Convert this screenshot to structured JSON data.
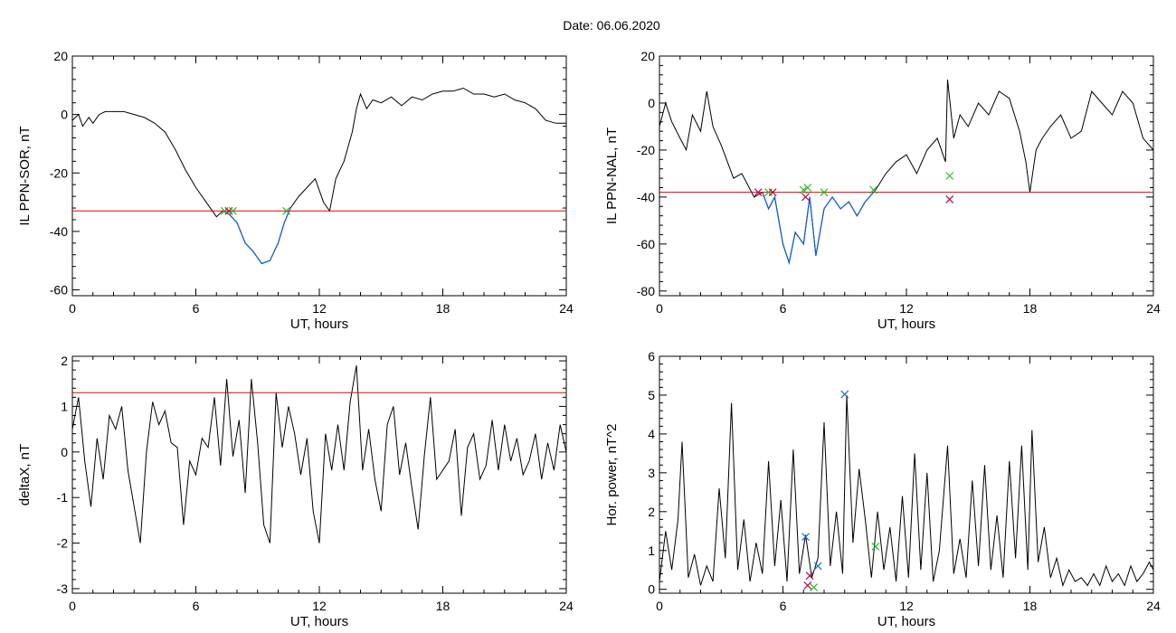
{
  "title": "Date:  06.06.2020",
  "colors": {
    "line": "#000000",
    "threshold": "#e8000b",
    "highlight": "#0a5ed6",
    "mark_green": "#20c020",
    "mark_red": "#c0004a",
    "mark_blue": "#1a6fd6"
  },
  "chart_data": [
    {
      "id": "sor",
      "type": "line",
      "xlabel": "UT, hours",
      "ylabel": "IL PPN-SOR, nT",
      "xlim": [
        0,
        24
      ],
      "ylim": [
        -62,
        20
      ],
      "xticks": [
        0,
        6,
        12,
        18,
        24
      ],
      "yticks": [
        -60,
        -40,
        -20,
        0,
        20
      ],
      "threshold": -33,
      "highlight_ranges": [
        [
          7.3,
          10.6
        ]
      ],
      "series": [
        {
          "x": [
            0,
            0.3,
            0.5,
            0.8,
            1,
            1.3,
            1.6,
            2,
            2.5,
            3,
            3.5,
            4,
            4.5,
            5,
            5.5,
            6,
            6.5,
            7,
            7.3,
            7.6,
            8,
            8.4,
            8.8,
            9.2,
            9.6,
            10,
            10.3,
            10.6,
            11,
            11.4,
            11.8,
            12.2,
            12.5,
            12.8,
            13.2,
            13.6,
            13.8,
            14,
            14.3,
            14.6,
            15,
            15.5,
            16,
            16.5,
            17,
            17.5,
            18,
            18.5,
            19,
            19.5,
            20,
            20.5,
            21,
            21.5,
            22,
            22.5,
            23,
            23.5,
            24
          ],
          "y": [
            -2,
            0,
            -4,
            -1,
            -3,
            0,
            1,
            1,
            1,
            0,
            -1,
            -3,
            -6,
            -12,
            -19,
            -25,
            -30,
            -35,
            -33,
            -34,
            -37,
            -44,
            -47,
            -51,
            -50,
            -44,
            -37,
            -32,
            -28,
            -25,
            -22,
            -30,
            -33,
            -22,
            -16,
            -6,
            2,
            7,
            2,
            5,
            4,
            6,
            3,
            6,
            5,
            7,
            8,
            8,
            9,
            7,
            7,
            6,
            7,
            5,
            4,
            2,
            -2,
            -3,
            -3
          ]
        }
      ],
      "markers": [
        {
          "x": 7.4,
          "y": -33,
          "color": "#20c020"
        },
        {
          "x": 7.6,
          "y": -33,
          "color": "#c0004a"
        },
        {
          "x": 7.8,
          "y": -33,
          "color": "#20c020"
        },
        {
          "x": 10.4,
          "y": -33,
          "color": "#20c020"
        }
      ]
    },
    {
      "id": "nal",
      "type": "line",
      "xlabel": "UT, hours",
      "ylabel": "IL PPN-NAL, nT",
      "xlim": [
        0,
        24
      ],
      "ylim": [
        -82,
        20
      ],
      "xticks": [
        0,
        6,
        12,
        18,
        24
      ],
      "yticks": [
        -80,
        -60,
        -40,
        -20,
        0,
        20
      ],
      "threshold": -38,
      "highlight_ranges": [
        [
          4.8,
          10.5
        ]
      ],
      "series": [
        {
          "x": [
            0,
            0.3,
            0.6,
            1,
            1.3,
            1.6,
            2,
            2.3,
            2.6,
            3,
            3.3,
            3.6,
            4,
            4.3,
            4.6,
            5,
            5.3,
            5.6,
            6,
            6.3,
            6.6,
            7,
            7.3,
            7.6,
            8,
            8.4,
            8.8,
            9.2,
            9.6,
            10,
            10.5,
            11,
            11.5,
            12,
            12.5,
            13,
            13.5,
            13.9,
            14,
            14.3,
            14.6,
            15,
            15.5,
            16,
            16.5,
            17,
            17.5,
            17.8,
            18,
            18.3,
            18.6,
            19,
            19.5,
            20,
            20.5,
            21,
            21.5,
            22,
            22.5,
            23,
            23.5,
            24
          ],
          "y": [
            -10,
            0,
            -8,
            -15,
            -20,
            -5,
            -12,
            5,
            -10,
            -18,
            -25,
            -32,
            -30,
            -35,
            -40,
            -38,
            -45,
            -40,
            -60,
            -68,
            -55,
            -60,
            -40,
            -65,
            -45,
            -40,
            -45,
            -42,
            -48,
            -42,
            -37,
            -30,
            -25,
            -22,
            -30,
            -20,
            -15,
            -25,
            10,
            -15,
            -5,
            -10,
            0,
            -5,
            5,
            2,
            -12,
            -25,
            -38,
            -20,
            -15,
            -10,
            -5,
            -15,
            -12,
            5,
            0,
            -5,
            5,
            0,
            -15,
            -20
          ]
        }
      ],
      "markers": [
        {
          "x": 4.8,
          "y": -38,
          "color": "#c0004a"
        },
        {
          "x": 5.3,
          "y": -38,
          "color": "#20c020"
        },
        {
          "x": 5.5,
          "y": -38,
          "color": "#c0004a"
        },
        {
          "x": 7.0,
          "y": -37,
          "color": "#20c020"
        },
        {
          "x": 7.1,
          "y": -40,
          "color": "#c0004a"
        },
        {
          "x": 7.2,
          "y": -36,
          "color": "#20c020"
        },
        {
          "x": 8.0,
          "y": -38,
          "color": "#20c020"
        },
        {
          "x": 10.4,
          "y": -37,
          "color": "#20c020"
        },
        {
          "x": 14.1,
          "y": -31,
          "color": "#20c020"
        },
        {
          "x": 14.1,
          "y": -41,
          "color": "#c0004a"
        }
      ]
    },
    {
      "id": "dx",
      "type": "line",
      "xlabel": "UT, hours",
      "ylabel": "deltaX, nT",
      "xlim": [
        0,
        24
      ],
      "ylim": [
        -3.1,
        2.1
      ],
      "xticks": [
        0,
        6,
        12,
        18,
        24
      ],
      "yticks": [
        -3,
        -2,
        -1,
        0,
        1,
        2
      ],
      "threshold": 1.3,
      "highlight_ranges": [],
      "series": [
        {
          "x": [
            0,
            0.3,
            0.6,
            0.9,
            1.2,
            1.5,
            1.8,
            2.1,
            2.4,
            2.7,
            3.0,
            3.3,
            3.6,
            3.9,
            4.2,
            4.5,
            4.8,
            5.1,
            5.4,
            5.7,
            6.0,
            6.3,
            6.6,
            6.9,
            7.2,
            7.5,
            7.8,
            8.1,
            8.4,
            8.7,
            9.0,
            9.3,
            9.6,
            9.9,
            10.2,
            10.5,
            10.8,
            11.1,
            11.4,
            11.7,
            12.0,
            12.3,
            12.6,
            12.9,
            13.2,
            13.5,
            13.8,
            14.1,
            14.4,
            14.7,
            15.0,
            15.3,
            15.6,
            15.9,
            16.2,
            16.5,
            16.8,
            17.1,
            17.4,
            17.7,
            18.0,
            18.3,
            18.6,
            18.9,
            19.2,
            19.5,
            19.8,
            20.1,
            20.4,
            20.7,
            21.0,
            21.3,
            21.6,
            21.9,
            22.2,
            22.5,
            22.8,
            23.1,
            23.4,
            23.7,
            24
          ],
          "y": [
            0.5,
            1.2,
            -0.2,
            -1.2,
            0.3,
            -0.6,
            0.8,
            0.5,
            1.0,
            -0.4,
            -1.2,
            -2.0,
            0.0,
            1.1,
            0.6,
            0.9,
            0.2,
            0.1,
            -1.6,
            -0.2,
            -0.5,
            0.3,
            0.1,
            1.2,
            -0.3,
            1.6,
            -0.1,
            0.7,
            -0.9,
            1.6,
            0.2,
            -1.6,
            -2.0,
            1.3,
            0.1,
            1.0,
            0.4,
            -0.5,
            0.3,
            -1.3,
            -2.0,
            0.4,
            -0.4,
            0.6,
            -0.4,
            1.1,
            1.9,
            -0.4,
            0.5,
            -0.6,
            -1.3,
            0.6,
            1.0,
            -0.5,
            0.2,
            -0.8,
            -1.7,
            -0.1,
            1.2,
            -0.6,
            -0.4,
            -0.2,
            0.5,
            -1.4,
            0.1,
            0.4,
            -0.6,
            -0.3,
            0.7,
            -0.4,
            0.6,
            -0.2,
            0.3,
            -0.5,
            -0.2,
            0.4,
            -0.6,
            0.2,
            -0.4,
            0.6,
            0.0
          ]
        }
      ],
      "markers": []
    },
    {
      "id": "pw",
      "type": "line",
      "xlabel": "UT, hours",
      "ylabel": "Hor. power, nT^2",
      "xlim": [
        0,
        24
      ],
      "ylim": [
        -0.1,
        6
      ],
      "xticks": [
        0,
        6,
        12,
        18,
        24
      ],
      "yticks": [
        0,
        1,
        2,
        3,
        4,
        5,
        6
      ],
      "threshold": null,
      "highlight_ranges": [],
      "series": [
        {
          "x": [
            0,
            0.3,
            0.6,
            0.9,
            1.1,
            1.4,
            1.7,
            2.0,
            2.3,
            2.6,
            2.9,
            3.2,
            3.5,
            3.8,
            4.1,
            4.4,
            4.7,
            5.0,
            5.3,
            5.6,
            5.9,
            6.2,
            6.5,
            6.8,
            7.1,
            7.4,
            7.7,
            8.0,
            8.3,
            8.6,
            8.9,
            9.1,
            9.4,
            9.7,
            10.0,
            10.3,
            10.6,
            10.9,
            11.2,
            11.5,
            11.8,
            12.1,
            12.4,
            12.7,
            13.0,
            13.3,
            13.6,
            14.0,
            14.3,
            14.6,
            14.9,
            15.2,
            15.5,
            15.8,
            16.1,
            16.4,
            16.7,
            17.0,
            17.3,
            17.6,
            17.9,
            18.1,
            18.4,
            18.7,
            19.0,
            19.3,
            19.6,
            19.9,
            20.2,
            20.5,
            20.8,
            21.1,
            21.4,
            21.7,
            22.0,
            22.3,
            22.6,
            22.9,
            23.2,
            23.5,
            23.8,
            24
          ],
          "y": [
            0.2,
            1.5,
            0.5,
            1.8,
            3.8,
            0.3,
            0.9,
            0.1,
            0.6,
            0.2,
            2.6,
            0.8,
            4.8,
            0.5,
            1.8,
            0.2,
            1.2,
            0.4,
            3.3,
            0.6,
            2.3,
            0.2,
            3.6,
            0.4,
            1.4,
            0.3,
            0.8,
            4.3,
            0.6,
            2.0,
            0.4,
            5.0,
            1.2,
            3.1,
            1.8,
            0.3,
            2.0,
            0.5,
            1.6,
            0.2,
            2.4,
            0.3,
            3.5,
            0.5,
            3.0,
            0.2,
            1.0,
            3.7,
            0.4,
            1.3,
            0.3,
            2.8,
            0.6,
            3.2,
            0.5,
            1.9,
            0.3,
            3.3,
            0.8,
            3.7,
            0.5,
            4.1,
            0.7,
            1.6,
            0.3,
            0.8,
            0.1,
            0.5,
            0.2,
            0.3,
            0.1,
            0.4,
            0.1,
            0.6,
            0.2,
            0.4,
            0.1,
            0.6,
            0.2,
            0.4,
            0.7,
            0.5
          ]
        }
      ],
      "markers": [
        {
          "x": 7.1,
          "y": 1.35,
          "color": "#1a6fd6"
        },
        {
          "x": 7.7,
          "y": 0.6,
          "color": "#1a6fd6"
        },
        {
          "x": 7.3,
          "y": 0.35,
          "color": "#c0004a"
        },
        {
          "x": 7.5,
          "y": 0.05,
          "color": "#20c020"
        },
        {
          "x": 7.2,
          "y": 0.1,
          "color": "#c0004a"
        },
        {
          "x": 9.0,
          "y": 5.02,
          "color": "#1a6fd6"
        },
        {
          "x": 10.5,
          "y": 1.1,
          "color": "#20c020"
        }
      ]
    }
  ]
}
